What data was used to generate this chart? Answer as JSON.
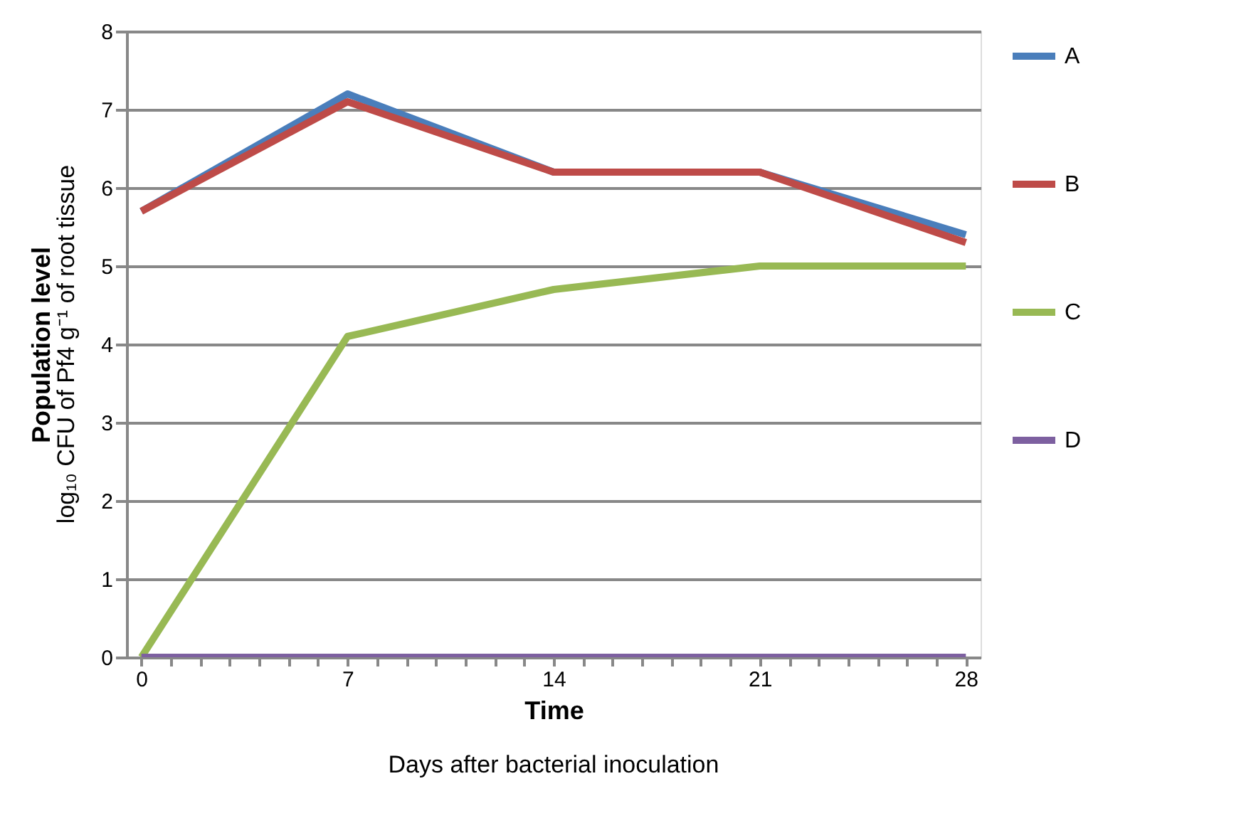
{
  "chart_data": {
    "type": "line",
    "x": [
      0,
      7,
      14,
      21,
      28
    ],
    "series": [
      {
        "name": "A",
        "color": "#4a7ebb",
        "values": [
          5.7,
          7.2,
          6.2,
          6.2,
          5.4
        ]
      },
      {
        "name": "B",
        "color": "#be4b48",
        "values": [
          5.7,
          7.1,
          6.2,
          6.2,
          5.3
        ]
      },
      {
        "name": "C",
        "color": "#98b954",
        "values": [
          0,
          4.1,
          4.7,
          5.0,
          5.0
        ]
      },
      {
        "name": "D",
        "color": "#7d60a0",
        "values": [
          0,
          0,
          0,
          0,
          0
        ]
      }
    ],
    "xlabel": "Time",
    "ylabel": "Population level",
    "annotations": [
      "log₁₀ CFU of  Pf4 g⁻¹ of root tissue",
      "Days after bacterial inoculation"
    ],
    "xlim": [
      -0.5,
      28.5
    ],
    "xticks": [
      0,
      {
        "value": 1,
        "label": null
      },
      {
        "value": 2,
        "label": null
      },
      {
        "value": 3,
        "label": null
      },
      {
        "value": 4,
        "label": null
      },
      {
        "value": 5,
        "label": null
      },
      {
        "value": 6,
        "label": null
      },
      7,
      {
        "value": 8,
        "label": null
      },
      {
        "value": 9,
        "label": null
      },
      {
        "value": 10,
        "label": null
      },
      {
        "value": 11,
        "label": null
      },
      {
        "value": 12,
        "label": null
      },
      {
        "value": 13,
        "label": null
      },
      14,
      {
        "value": 15,
        "label": null
      },
      {
        "value": 16,
        "label": null
      },
      {
        "value": 17,
        "label": null
      },
      {
        "value": 18,
        "label": null
      },
      {
        "value": 19,
        "label": null
      },
      {
        "value": 20,
        "label": null
      },
      21,
      {
        "value": 22,
        "label": null
      },
      {
        "value": 23,
        "label": null
      },
      {
        "value": 24,
        "label": null
      },
      {
        "value": 25,
        "label": null
      },
      {
        "value": 26,
        "label": null
      },
      {
        "value": 27,
        "label": null
      },
      28
    ],
    "ylim": [
      0,
      8
    ],
    "yticks": [
      0,
      1,
      2,
      3,
      4,
      5,
      6,
      7,
      8
    ],
    "grid": "y",
    "legend": "right",
    "marker": "none",
    "line_style": "solid"
  }
}
